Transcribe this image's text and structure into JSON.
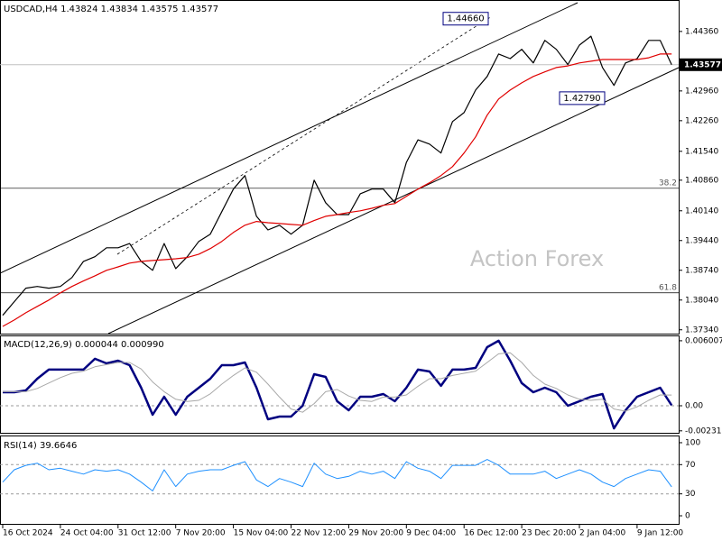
{
  "chart_data": [
    {
      "type": "line",
      "title": "USDCAD,H4 1.43824 1.43834 1.43575 1.43577",
      "watermark": "Action Forex",
      "categories": [
        "16 Oct 2024",
        null,
        null,
        null,
        null,
        "24 Oct 04:00",
        null,
        null,
        null,
        null,
        "31 Oct 12:00",
        null,
        null,
        null,
        null,
        "7 Nov 20:00",
        null,
        null,
        null,
        null,
        "15 Nov 04:00",
        null,
        null,
        null,
        null,
        "22 Nov 12:00",
        null,
        null,
        null,
        null,
        "29 Nov 20:00",
        null,
        null,
        null,
        null,
        "9 Dec 04:00",
        null,
        null,
        null,
        null,
        "16 Dec 12:00",
        null,
        null,
        null,
        null,
        "23 Dec 20:00",
        null,
        null,
        null,
        null,
        "2 Jan 04:00",
        null,
        null,
        null,
        null,
        "9 Jan 12:00",
        null,
        null,
        null
      ],
      "series": [
        {
          "color": "#000000",
          "values": [
            1.3768,
            1.38,
            1.3832,
            1.3836,
            1.3832,
            1.3836,
            1.3857,
            1.3895,
            1.3906,
            1.3927,
            1.3927,
            1.3937,
            1.3895,
            1.3874,
            1.3937,
            1.3878,
            1.3906,
            1.3942,
            1.3959,
            1.4012,
            1.4065,
            1.4097,
            1.4001,
            1.3969,
            1.398,
            1.3959,
            1.398,
            1.4086,
            1.4033,
            1.4005,
            1.4005,
            1.4054,
            1.4065,
            1.4065,
            1.4033,
            1.4128,
            1.4181,
            1.4171,
            1.415,
            1.4224,
            1.4245,
            1.4298,
            1.433,
            1.4383,
            1.4372,
            1.4394,
            1.4362,
            1.4415,
            1.4394,
            1.4358,
            1.4404,
            1.4425,
            1.4351,
            1.4309,
            1.4362,
            1.4372,
            1.4415,
            1.4415,
            1.43577
          ]
        },
        {
          "color": "#e00000",
          "values": [
            1.3742,
            1.3757,
            1.3774,
            1.3789,
            1.3804,
            1.3821,
            1.3836,
            1.3849,
            1.3861,
            1.3874,
            1.3882,
            1.3891,
            1.3895,
            1.3897,
            1.3899,
            1.3901,
            1.3904,
            1.3912,
            1.3925,
            1.3942,
            1.3963,
            1.398,
            1.3989,
            1.3986,
            1.3984,
            1.3982,
            1.398,
            1.3991,
            1.4001,
            1.4005,
            1.401,
            1.4014,
            1.402,
            1.4027,
            1.4031,
            1.4048,
            1.4065,
            1.408,
            1.4097,
            1.4118,
            1.415,
            1.4188,
            1.4239,
            1.4277,
            1.4298,
            1.4315,
            1.433,
            1.4341,
            1.4351,
            1.4355,
            1.4362,
            1.4366,
            1.437,
            1.437,
            1.437,
            1.437,
            1.4374,
            1.4383,
            1.4383
          ]
        }
      ],
      "ylim": [
        1.3725,
        1.451
      ],
      "yticks": [
        {
          "value": 1.4436,
          "label": "1.44360"
        },
        {
          "value": 1.4296,
          "label": "1.42960"
        },
        {
          "value": 1.4226,
          "label": "1.42260"
        },
        {
          "value": 1.4154,
          "label": "1.41540"
        },
        {
          "value": 1.4086,
          "label": "1.40860"
        },
        {
          "value": 1.4014,
          "label": "1.40140"
        },
        {
          "value": 1.3944,
          "label": "1.39440"
        },
        {
          "value": 1.3874,
          "label": "1.38740"
        },
        {
          "value": 1.3804,
          "label": "1.38040"
        },
        {
          "value": 1.3734,
          "label": "1.37340"
        }
      ],
      "last_price": {
        "value": 1.43577,
        "label": "1.43577"
      },
      "levels": [
        {
          "value": 1.4067,
          "label": "38.2"
        },
        {
          "value": 1.3821,
          "label": "61.8"
        }
      ],
      "callouts": [
        {
          "value": 1.4466,
          "label": "1.44660"
        },
        {
          "value": 1.4279,
          "label": "1.42790"
        }
      ]
    },
    {
      "type": "line",
      "title": "MACD(12,26,9) 0.000044 0.000990",
      "series": [
        {
          "color": "#000080",
          "values": [
            0.00125,
            0.00125,
            0.00142,
            0.0025,
            0.00334,
            0.00334,
            0.00334,
            0.00334,
            0.00434,
            0.00392,
            0.00417,
            0.00375,
            0.00167,
            -0.00083,
            0.00083,
            -0.00083,
            0.00083,
            0.00167,
            0.0025,
            0.00375,
            0.00375,
            0.004,
            0.00167,
            -0.00125,
            -0.001,
            -0.001,
            0,
            0.00292,
            0.00267,
            0.00042,
            -0.00042,
            0.00083,
            0.00083,
            0.00108,
            0.00042,
            0.00167,
            0.00334,
            0.00317,
            0.00184,
            0.00334,
            0.00334,
            0.0035,
            0.00542,
            0.00601,
            0.00417,
            0.00209,
            0.00125,
            0.00167,
            0.00125,
            0,
            0.00042,
            0.00083,
            0.00108,
            -0.00209,
            -0.00042,
            0.00083,
            0.00125,
            0.00167,
            4.4e-05
          ]
        },
        {
          "color": "#a8a8a8",
          "values": [
            0.0013,
            0.0013,
            0.0013,
            0.0016,
            0.0021,
            0.0026,
            0.003,
            0.0032,
            0.0036,
            0.0038,
            0.004,
            0.004,
            0.0034,
            0.0022,
            0.0013,
            0.0006,
            0.0004,
            0.0005,
            0.0011,
            0.002,
            0.0028,
            0.0035,
            0.0031,
            0.002,
            0.0008,
            -0.0003,
            -0.0006,
            0.0002,
            0.0013,
            0.0015,
            0.0009,
            0.0005,
            0.0004,
            0.0008,
            0.0008,
            0.001,
            0.0018,
            0.0025,
            0.0025,
            0.0028,
            0.003,
            0.0032,
            0.004,
            0.0048,
            0.0049,
            0.004,
            0.0028,
            0.002,
            0.0016,
            0.001,
            0.0006,
            0.0005,
            0.0006,
            -0.0003,
            -0.0005,
            -0.0001,
            0.0005,
            0.001,
            0.00099
          ]
        }
      ],
      "ylim": [
        -0.0025,
        0.0065
      ],
      "yticks": [
        0.006007,
        {
          "value": 0,
          "label": "0.00"
        },
        -0.002318
      ],
      "level_lines": [
        0
      ]
    },
    {
      "type": "line",
      "title": "RSI(14) 39.6646",
      "series": [
        {
          "color": "#1e90ff",
          "values": [
            46,
            63,
            69,
            72,
            63,
            65,
            61,
            57,
            63,
            61,
            63,
            57,
            46,
            34,
            63,
            40,
            57,
            61,
            63,
            63,
            69,
            74,
            49,
            40,
            51,
            46,
            40,
            72,
            57,
            51,
            54,
            61,
            57,
            61,
            51,
            74,
            65,
            61,
            51,
            69,
            69,
            69,
            77,
            69,
            57,
            57,
            57,
            61,
            51,
            57,
            63,
            57,
            46,
            40,
            51,
            57,
            63,
            61,
            39.66
          ]
        }
      ],
      "ylim": [
        -12.3,
        108.6
      ],
      "yticks": [
        100,
        70,
        30,
        0
      ],
      "level_lines": [
        70,
        30
      ]
    }
  ]
}
